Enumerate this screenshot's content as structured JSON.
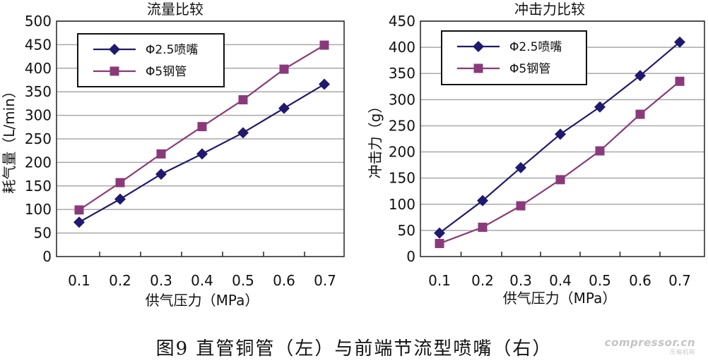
{
  "caption": "图9 直管铜管（左）与前端节流型喷嘴（右）",
  "watermark": {
    "main": "compressor.cn",
    "sub": "压缩机网"
  },
  "chart_data": [
    {
      "type": "line",
      "title": "流量比较",
      "xlabel": "供气压力（MPa）",
      "ylabel": "耗气量（L/min）",
      "categories": [
        "0.1",
        "0.2",
        "0.3",
        "0.4",
        "0.5",
        "0.6",
        "0.7"
      ],
      "ylim": [
        0,
        500
      ],
      "yticks": [
        "0",
        "50",
        "100",
        "150",
        "200",
        "250",
        "300",
        "350",
        "400",
        "450",
        "500"
      ],
      "grid": true,
      "legend": "top-left",
      "series": [
        {
          "name": "Φ2.5喷嘴",
          "marker": "diamond",
          "color": "#1f1a6e",
          "x": [
            0.1,
            0.2,
            0.3,
            0.4,
            0.5,
            0.6,
            0.7
          ],
          "values": [
            73,
            122,
            175,
            218,
            263,
            315,
            366
          ]
        },
        {
          "name": "Φ5钢管",
          "marker": "square",
          "color": "#8a3a7a",
          "x": [
            0.1,
            0.2,
            0.3,
            0.4,
            0.5,
            0.6,
            0.7
          ],
          "values": [
            99,
            157,
            218,
            276,
            333,
            398,
            449
          ]
        }
      ]
    },
    {
      "type": "line",
      "title": "冲击力比较",
      "xlabel": "供气压力（MPa）",
      "ylabel": "冲击力（g）",
      "categories": [
        "0.1",
        "0.2",
        "0.3",
        "0.4",
        "0.5",
        "0.6",
        "0.7"
      ],
      "ylim": [
        0,
        450
      ],
      "yticks": [
        "0",
        "50",
        "100",
        "150",
        "200",
        "250",
        "300",
        "350",
        "400",
        "450"
      ],
      "grid": true,
      "legend": "top-left",
      "series": [
        {
          "name": "Φ2.5喷嘴",
          "marker": "diamond",
          "color": "#1f1a6e",
          "x": [
            0.1,
            0.2,
            0.3,
            0.4,
            0.5,
            0.6,
            0.7
          ],
          "values": [
            45,
            107,
            170,
            234,
            286,
            346,
            410
          ]
        },
        {
          "name": "Φ5钢管",
          "marker": "square",
          "color": "#8a3a7a",
          "x": [
            0.1,
            0.2,
            0.3,
            0.4,
            0.5,
            0.6,
            0.7
          ],
          "values": [
            25,
            56,
            97,
            147,
            202,
            272,
            335
          ]
        }
      ]
    }
  ]
}
